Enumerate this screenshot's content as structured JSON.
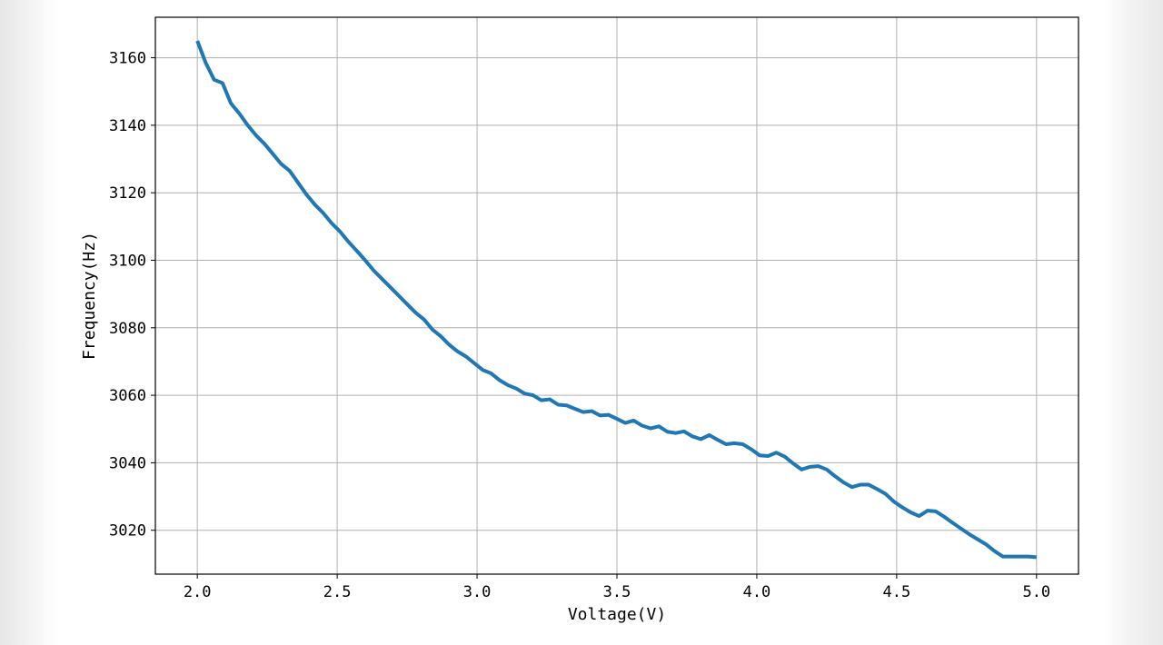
{
  "chart_data": {
    "type": "line",
    "title": "",
    "xlabel": "Voltage(V)",
    "ylabel": "Frequency(Hz)",
    "xlim": [
      1.85,
      5.15
    ],
    "ylim": [
      3007,
      3172
    ],
    "xticks": [
      2.0,
      2.5,
      3.0,
      3.5,
      4.0,
      4.5,
      5.0
    ],
    "xtick_labels": [
      "2.0",
      "2.5",
      "3.0",
      "3.5",
      "4.0",
      "4.5",
      "5.0"
    ],
    "yticks": [
      3020,
      3040,
      3060,
      3080,
      3100,
      3120,
      3140,
      3160
    ],
    "ytick_labels": [
      "3020",
      "3040",
      "3060",
      "3080",
      "3100",
      "3120",
      "3140",
      "3160"
    ],
    "grid": true,
    "series": [
      {
        "color": "#1f77b4",
        "x": [
          2.0,
          2.03,
          2.06,
          2.09,
          2.12,
          2.15,
          2.18,
          2.21,
          2.24,
          2.27,
          2.3,
          2.33,
          2.36,
          2.39,
          2.42,
          2.45,
          2.48,
          2.51,
          2.54,
          2.57,
          2.6,
          2.63,
          2.66,
          2.69,
          2.72,
          2.75,
          2.78,
          2.81,
          2.84,
          2.87,
          2.9,
          2.93,
          2.96,
          2.99,
          3.02,
          3.05,
          3.08,
          3.11,
          3.14,
          3.17,
          3.2,
          3.23,
          3.26,
          3.29,
          3.32,
          3.35,
          3.38,
          3.41,
          3.44,
          3.47,
          3.5,
          3.53,
          3.56,
          3.59,
          3.62,
          3.65,
          3.68,
          3.71,
          3.74,
          3.77,
          3.8,
          3.83,
          3.86,
          3.89,
          3.92,
          3.95,
          3.98,
          4.01,
          4.04,
          4.07,
          4.1,
          4.13,
          4.16,
          4.19,
          4.22,
          4.25,
          4.28,
          4.31,
          4.34,
          4.37,
          4.4,
          4.43,
          4.46,
          4.49,
          4.52,
          4.55,
          4.58,
          4.61,
          4.64,
          4.67,
          4.7,
          4.73,
          4.76,
          4.79,
          4.82,
          4.85,
          4.88,
          4.91,
          4.94,
          4.97,
          5.0
        ],
        "y": [
          3165.0,
          3158.5,
          3153.5,
          3152.5,
          3146.5,
          3143.5,
          3140.0,
          3137.0,
          3134.5,
          3131.5,
          3128.5,
          3126.5,
          3123.0,
          3119.5,
          3116.5,
          3114.0,
          3111.0,
          3108.5,
          3105.5,
          3102.8,
          3100.0,
          3097.0,
          3094.5,
          3092.0,
          3089.5,
          3087.0,
          3084.5,
          3082.5,
          3079.5,
          3077.5,
          3075.0,
          3073.0,
          3071.5,
          3069.5,
          3067.5,
          3066.5,
          3064.5,
          3063.0,
          3062.0,
          3060.5,
          3060.0,
          3058.5,
          3058.8,
          3057.2,
          3057.0,
          3056.0,
          3055.0,
          3055.3,
          3054.0,
          3054.2,
          3053.0,
          3051.8,
          3052.5,
          3051.0,
          3050.2,
          3050.8,
          3049.2,
          3048.8,
          3049.3,
          3047.8,
          3047.0,
          3048.2,
          3046.8,
          3045.5,
          3045.8,
          3045.5,
          3044.0,
          3042.2,
          3042.0,
          3043.0,
          3041.8,
          3039.8,
          3038.0,
          3038.8,
          3039.0,
          3038.0,
          3036.0,
          3034.2,
          3032.8,
          3033.5,
          3033.5,
          3032.2,
          3030.8,
          3028.5,
          3026.8,
          3025.3,
          3024.2,
          3025.8,
          3025.6,
          3024.0,
          3022.2,
          3020.5,
          3018.8,
          3017.3,
          3015.8,
          3013.8,
          3012.2,
          3012.2,
          3012.2,
          3012.2,
          3012.0
        ]
      }
    ]
  }
}
